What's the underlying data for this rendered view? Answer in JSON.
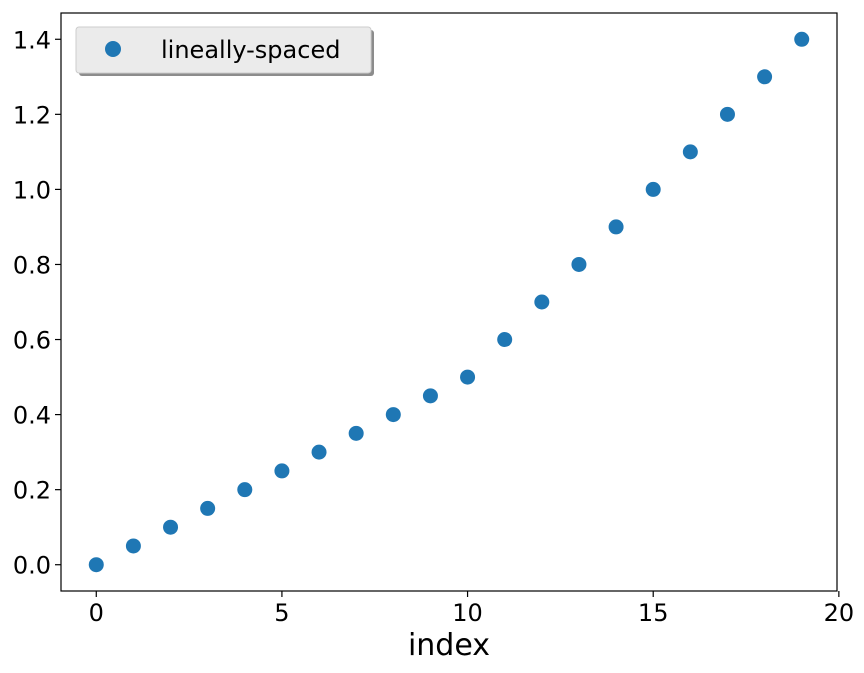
{
  "chart_data": {
    "type": "scatter",
    "title": "",
    "xlabel": "index",
    "ylabel": "",
    "xlim": [
      -0.95,
      19.95
    ],
    "ylim": [
      -0.07,
      1.47
    ],
    "xticks": [
      0,
      5,
      10,
      15,
      20
    ],
    "xtick_labels": [
      "0",
      "5",
      "10",
      "15",
      "20"
    ],
    "yticks": [
      0.0,
      0.2,
      0.4,
      0.6,
      0.8,
      1.0,
      1.2,
      1.4
    ],
    "ytick_labels": [
      "0.0",
      "0.2",
      "0.4",
      "0.6",
      "0.8",
      "1.0",
      "1.2",
      "1.4"
    ],
    "grid": false,
    "legend_position": "top-left",
    "series": [
      {
        "name": "lineally-spaced",
        "color": "#1f77b4",
        "marker": "circle",
        "x": [
          0,
          1,
          2,
          3,
          4,
          5,
          6,
          7,
          8,
          9,
          10,
          11,
          12,
          13,
          14,
          15,
          16,
          17,
          18,
          19
        ],
        "y": [
          0.0,
          0.05,
          0.1,
          0.15,
          0.2,
          0.25,
          0.3,
          0.35,
          0.4,
          0.45,
          0.5,
          0.6,
          0.7,
          0.8,
          0.9,
          1.0,
          1.1,
          1.2,
          1.3,
          1.4
        ]
      }
    ]
  }
}
